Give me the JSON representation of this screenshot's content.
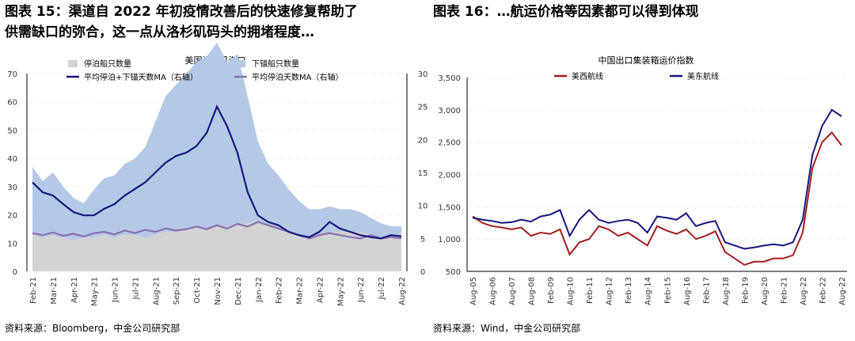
{
  "titles": {
    "left_line1": "图表 15：渠道自 2022 年初疫情改善后的快速修复帮助了",
    "left_line2": "供需缺口的弥合，这一点从洛杉矶码头的拥堵程度…",
    "right_line1": "图表 16：…航运价格等因素都可以得到体现"
  },
  "sources": {
    "left": "资料来源：Bloomberg，中金公司研究部",
    "right": "资料来源：Wind，中金公司研究部"
  },
  "colors": {
    "anchored": "#d3d3d3",
    "anchoring": "#b4c9e6",
    "total_days": "#17177e",
    "berth_days": "#8a6fb0",
    "west": "#a41d1d",
    "east": "#161680"
  },
  "chart_data": [
    {
      "type": "area",
      "title": "美国洛杉矶港口",
      "xlabel": "",
      "ylabel": "",
      "ylim": [
        0,
        70
      ],
      "y2lim": [
        0,
        30
      ],
      "yticks": [
        "0",
        "10",
        "20",
        "30",
        "40",
        "50",
        "60",
        "70"
      ],
      "y2ticks": [
        "0",
        "5",
        "10",
        "15",
        "20",
        "25",
        "30"
      ],
      "categories": [
        "Feb-21",
        "Mar-21",
        "Apr-21",
        "May-21",
        "Jun-21",
        "Jul-21",
        "Aug-21",
        "Sep-21",
        "Oct-21",
        "Nov-21",
        "Dec-21",
        "Jan-22",
        "Feb-22",
        "Mar-22",
        "Apr-22",
        "May-22",
        "Jun-22",
        "Jul-22",
        "Aug-22"
      ],
      "grid": true,
      "legend_position": "top-left",
      "series": [
        {
          "name": "停泊船只数量",
          "kind": "area",
          "axis": "left",
          "x": [
            0,
            0.5,
            1,
            1.5,
            2,
            2.5,
            3,
            3.5,
            4,
            4.5,
            5,
            5.5,
            6,
            6.5,
            7,
            7.5,
            8,
            8.5,
            9,
            9.5,
            10,
            10.5,
            11,
            11.5,
            12,
            12.5,
            13,
            13.5,
            14,
            14.5,
            15,
            15.5,
            16,
            16.5,
            17,
            17.5,
            18
          ],
          "values": [
            13,
            12,
            13,
            12,
            11,
            12,
            12,
            13,
            12,
            13,
            13,
            12,
            13,
            14,
            14,
            15,
            16,
            15,
            16,
            16,
            17,
            17,
            18,
            16,
            15,
            14,
            13,
            12,
            13,
            14,
            14,
            14,
            14,
            13,
            12,
            12,
            12
          ]
        },
        {
          "name": "下锚船只数量",
          "kind": "area",
          "axis": "left",
          "x": [
            0,
            0.5,
            1,
            1.5,
            2,
            2.5,
            3,
            3.5,
            4,
            4.5,
            5,
            5.5,
            6,
            6.5,
            7,
            7.5,
            8,
            8.5,
            9,
            9.5,
            10,
            10.5,
            11,
            11.5,
            12,
            12.5,
            13,
            13.5,
            14,
            14.5,
            15,
            15.5,
            16,
            16.5,
            17,
            17.5,
            18
          ],
          "values": [
            24,
            20,
            22,
            18,
            15,
            12,
            17,
            20,
            22,
            25,
            27,
            32,
            40,
            48,
            52,
            55,
            58,
            61,
            65,
            58,
            60,
            45,
            28,
            22,
            19,
            15,
            12,
            10,
            9,
            9,
            8,
            8,
            7,
            6,
            5,
            4,
            4
          ]
        },
        {
          "name": "平均停泊+下锚天数MA（右轴）",
          "kind": "line",
          "axis": "right",
          "x": [
            0,
            0.5,
            1,
            1.5,
            2,
            2.5,
            3,
            3.5,
            4,
            4.5,
            5,
            5.5,
            6,
            6.5,
            7,
            7.5,
            8,
            8.5,
            9,
            9.5,
            10,
            10.5,
            11,
            11.5,
            12,
            12.5,
            13,
            13.5,
            14,
            14.5,
            15,
            15.5,
            16,
            16.5,
            17,
            17.5,
            18
          ],
          "values": [
            13.5,
            12,
            11.5,
            10.2,
            9,
            8.5,
            8.5,
            9.5,
            10.2,
            11.5,
            12.5,
            13.5,
            15,
            16.5,
            17.5,
            18,
            19,
            21,
            25,
            22,
            18,
            12,
            8.5,
            7.5,
            7,
            6,
            5.5,
            5.2,
            6,
            7.5,
            6.5,
            6,
            5.5,
            5.2,
            5,
            5.5,
            5.3
          ]
        },
        {
          "name": "平均停泊天数MA（右轴）",
          "kind": "line",
          "axis": "right",
          "x": [
            0,
            0.5,
            1,
            1.5,
            2,
            2.5,
            3,
            3.5,
            4,
            4.5,
            5,
            5.5,
            6,
            6.5,
            7,
            7.5,
            8,
            8.5,
            9,
            9.5,
            10,
            10.5,
            11,
            11.5,
            12,
            12.5,
            13,
            13.5,
            14,
            14.5,
            15,
            15.5,
            16,
            16.5,
            17,
            17.5,
            18
          ],
          "values": [
            5.8,
            5.5,
            5.9,
            5.4,
            5.7,
            5.3,
            5.8,
            6.0,
            5.6,
            6.2,
            5.8,
            6.3,
            6.0,
            6.5,
            6.2,
            6.4,
            6.8,
            6.4,
            7.0,
            6.5,
            7.2,
            6.8,
            7.5,
            7.0,
            6.5,
            6.0,
            5.5,
            5.0,
            5.5,
            5.8,
            5.5,
            5.2,
            5.0,
            5.5,
            5.0,
            5.2,
            5.0
          ]
        }
      ]
    },
    {
      "type": "line",
      "title": "中国出口集装箱运价指数",
      "xlabel": "",
      "ylabel": "",
      "ylim": [
        500,
        3500
      ],
      "yticks": [
        "500",
        "1,000",
        "1,500",
        "2,000",
        "2,500",
        "3,000",
        "3,500"
      ],
      "categories": [
        "Aug-05",
        "Aug-06",
        "Aug-07",
        "Aug-08",
        "Feb-09",
        "Aug-10",
        "Feb-11",
        "Aug-12",
        "Feb-13",
        "Aug-14",
        "Feb-15",
        "Aug-16",
        "Feb-17",
        "Aug-18",
        "Feb-19",
        "Aug-20",
        "Feb-21",
        "Aug-22",
        "Feb-22",
        "Aug-22"
      ],
      "grid": true,
      "legend_position": "top-center",
      "series": [
        {
          "name": "美西航线",
          "x": [
            0,
            0.5,
            1,
            1.5,
            2,
            2.5,
            3,
            3.5,
            4,
            4.5,
            5,
            5.5,
            6,
            6.5,
            7,
            7.5,
            8,
            8.5,
            9,
            9.5,
            10,
            10.5,
            11,
            11.5,
            12,
            12.5,
            13,
            13.5,
            14,
            14.5,
            15,
            15.5,
            16,
            16.5,
            17,
            17.5,
            18,
            18.5,
            19
          ],
          "values": [
            1350,
            1250,
            1200,
            1180,
            1150,
            1180,
            1050,
            1100,
            1080,
            1150,
            760,
            950,
            1000,
            1200,
            1150,
            1050,
            1100,
            1000,
            900,
            1200,
            1130,
            1080,
            1150,
            1000,
            1050,
            1120,
            800,
            700,
            600,
            650,
            650,
            700,
            700,
            750,
            1100,
            2100,
            2500,
            2650,
            2450
          ]
        },
        {
          "name": "美东航线",
          "x": [
            0,
            0.5,
            1,
            1.5,
            2,
            2.5,
            3,
            3.5,
            4,
            4.5,
            5,
            5.5,
            6,
            6.5,
            7,
            7.5,
            8,
            8.5,
            9,
            9.5,
            10,
            10.5,
            11,
            11.5,
            12,
            12.5,
            13,
            13.5,
            14,
            14.5,
            15,
            15.5,
            16,
            16.5,
            17,
            17.5,
            18,
            18.5,
            19
          ],
          "values": [
            1330,
            1300,
            1280,
            1250,
            1260,
            1300,
            1270,
            1350,
            1380,
            1450,
            1050,
            1300,
            1450,
            1300,
            1250,
            1280,
            1300,
            1250,
            1100,
            1350,
            1330,
            1300,
            1400,
            1200,
            1250,
            1280,
            950,
            900,
            850,
            870,
            900,
            920,
            900,
            950,
            1300,
            2300,
            2750,
            3000,
            2900
          ]
        }
      ]
    }
  ]
}
